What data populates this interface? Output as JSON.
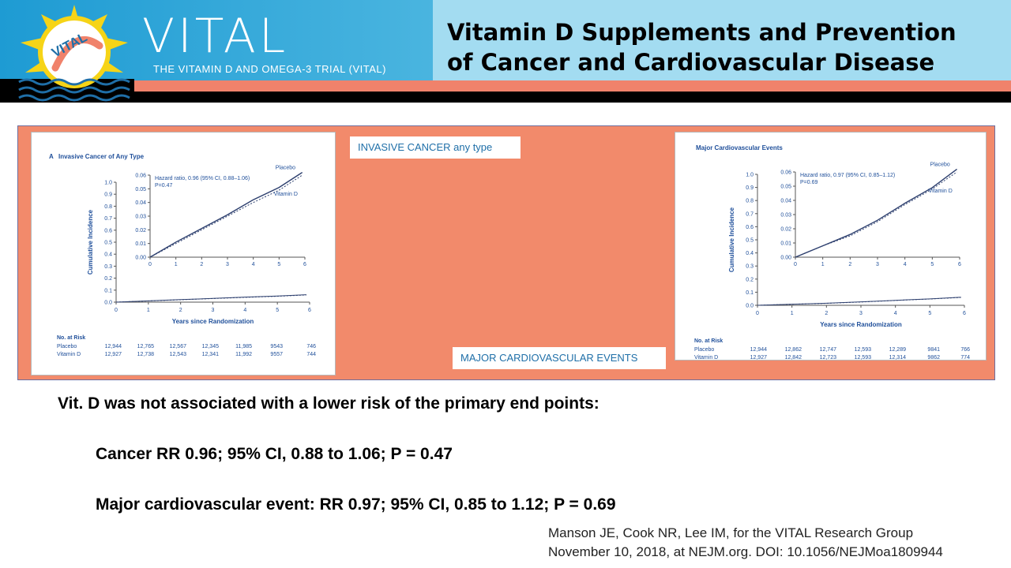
{
  "header": {
    "brand_name": "VITAL",
    "brand_sub": "THE VITAMIN D AND OMEGA-3 TRIAL (VITAL)",
    "logo_text": "VITAL",
    "title_line1": "Vitamin D Supplements and Prevention",
    "title_line2": "of Cancer and Cardiovascular Disease"
  },
  "labels": {
    "cancer": "INVASIVE CANCER any type",
    "cardio": "MAJOR CARDIOVASCULAR EVENTS"
  },
  "summary": {
    "heading": "Vit. D was not associated with a lower risk of  the primary end points:",
    "cancer": "Cancer RR 0.96; 95% CI,  0.88 to 1.06; P = 0.47",
    "cardio": "Major cardiovascular event:  RR 0.97; 95% CI, 0.85 to 1.12; P = 0.69"
  },
  "citation": {
    "line1": "Manson JE, Cook NR, Lee IM, for the VITAL Research Group",
    "line2": "November 10, 2018, at NEJM.org. DOI: 10.1056/NEJMoa1809944"
  },
  "colors": {
    "header_blue": "#1e9bd3",
    "salmon": "#f28a6b",
    "label_text": "#1f6fa8",
    "curve": "#2d3f6e"
  },
  "chart_data": [
    {
      "type": "line",
      "title": "Invasive Cancer of Any Type",
      "panel_letter": "A",
      "xlabel": "Years since Randomization",
      "ylabel": "Cumulative Incidence",
      "xlim": [
        0,
        6
      ],
      "ylim": [
        0,
        1.0
      ],
      "x_ticks": [
        0,
        1,
        2,
        3,
        4,
        5,
        6
      ],
      "y_ticks": [
        0.0,
        0.1,
        0.2,
        0.3,
        0.4,
        0.5,
        0.6,
        0.7,
        0.8,
        0.9,
        1.0
      ],
      "inset": {
        "xlim": [
          0,
          6
        ],
        "ylim": [
          0,
          0.06
        ],
        "y_ticks": [
          0.0,
          0.01,
          0.02,
          0.03,
          0.04,
          0.05,
          0.06
        ],
        "annotation_line1": "Hazard ratio, 0.96 (95% CI, 0.88–1.06)",
        "annotation_line2": "P=0.47"
      },
      "x": [
        0,
        1,
        2,
        3,
        4,
        5,
        5.9
      ],
      "series": [
        {
          "name": "Placebo",
          "values": [
            0.0,
            0.011,
            0.021,
            0.031,
            0.042,
            0.051,
            0.062
          ],
          "dash": false
        },
        {
          "name": "Vitamin D",
          "values": [
            0.0,
            0.01,
            0.02,
            0.03,
            0.04,
            0.049,
            0.06
          ],
          "dash": true
        }
      ],
      "at_risk": {
        "heading": "No. at Risk",
        "rows": [
          {
            "label": "Placebo",
            "values": [
              "12,944",
              "12,765",
              "12,567",
              "12,345",
              "11,985",
              "9543",
              "746"
            ]
          },
          {
            "label": "Vitamin D",
            "values": [
              "12,927",
              "12,738",
              "12,543",
              "12,341",
              "11,992",
              "9557",
              "744"
            ]
          }
        ]
      }
    },
    {
      "type": "line",
      "title": "Major Cardiovascular Events",
      "panel_letter": "",
      "xlabel": "Years since Randomization",
      "ylabel": "Cumulative Incidence",
      "xlim": [
        0,
        6
      ],
      "ylim": [
        0,
        1.0
      ],
      "x_ticks": [
        0,
        1,
        2,
        3,
        4,
        5,
        6
      ],
      "y_ticks": [
        0.0,
        0.1,
        0.2,
        0.3,
        0.4,
        0.5,
        0.6,
        0.7,
        0.8,
        0.9,
        1.0
      ],
      "inset": {
        "xlim": [
          0,
          6
        ],
        "ylim": [
          0,
          0.06
        ],
        "y_ticks": [
          0.0,
          0.01,
          0.02,
          0.03,
          0.04,
          0.05,
          0.06
        ],
        "annotation_line1": "Hazard ratio, 0.97 (95% CI, 0.85–1.12)",
        "annotation_line2": "P=0.69"
      },
      "x": [
        0,
        1,
        2,
        3,
        4,
        5,
        5.9
      ],
      "series": [
        {
          "name": "Placebo",
          "values": [
            0.0,
            0.008,
            0.016,
            0.026,
            0.038,
            0.049,
            0.062
          ],
          "dash": false
        },
        {
          "name": "Vitamin D",
          "values": [
            0.0,
            0.008,
            0.015,
            0.025,
            0.037,
            0.048,
            0.06
          ],
          "dash": true
        }
      ],
      "at_risk": {
        "heading": "No. at Risk",
        "rows": [
          {
            "label": "Placebo",
            "values": [
              "12,944",
              "12,862",
              "12,747",
              "12,593",
              "12,289",
              "9841",
              "766"
            ]
          },
          {
            "label": "Vitamin D",
            "values": [
              "12,927",
              "12,842",
              "12,723",
              "12,593",
              "12,314",
              "9862",
              "774"
            ]
          }
        ]
      }
    }
  ]
}
